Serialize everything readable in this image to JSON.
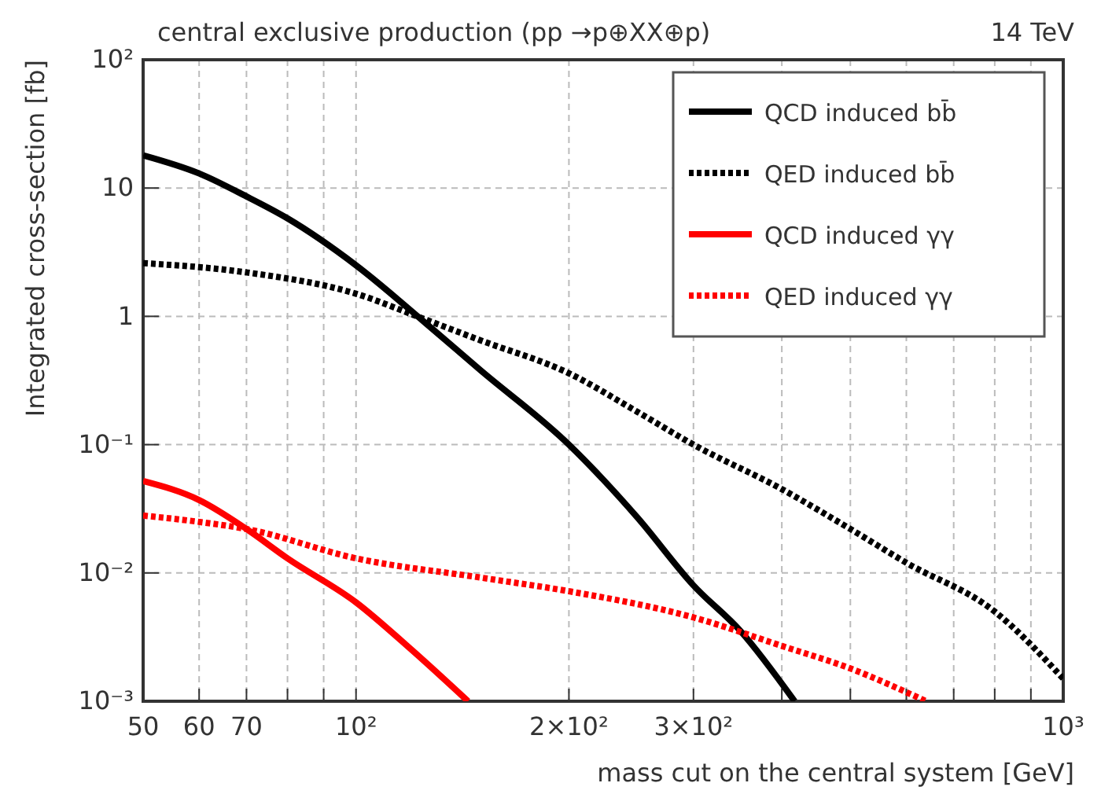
{
  "chart_data": {
    "type": "line",
    "title": "central exclusive production (pp →p⊕XX⊕p)",
    "annotations": [
      "14 TeV"
    ],
    "xlabel": "mass cut on the central system [GeV]",
    "ylabel": "Integrated cross-section [fb]",
    "log": "xy",
    "grid": true,
    "legend": "top right",
    "xlim": [
      50,
      1000
    ],
    "ylim": [
      0.001,
      100
    ],
    "xticks": [
      50,
      60,
      70,
      {
        "value": 80,
        "label": null
      },
      {
        "value": 90,
        "label": null
      },
      {
        "value": 100,
        "label": "10²"
      },
      {
        "value": 200,
        "label": "2×10²"
      },
      {
        "value": 300,
        "label": "3×10²"
      },
      {
        "value": 400,
        "label": null
      },
      {
        "value": 500,
        "label": null
      },
      {
        "value": 600,
        "label": null
      },
      {
        "value": 700,
        "label": null
      },
      {
        "value": 800,
        "label": null
      },
      {
        "value": 900,
        "label": null
      },
      {
        "value": 1000,
        "label": "10³"
      }
    ],
    "yticks": [
      {
        "value": 0.001,
        "label": "10⁻³"
      },
      {
        "value": 0.01,
        "label": "10⁻²"
      },
      {
        "value": 0.1,
        "label": "10⁻¹"
      },
      1,
      10,
      {
        "value": 100,
        "label": "10²"
      }
    ],
    "series": [
      {
        "name": "QCD induced bb̄",
        "color": "#000000",
        "line_style": "solid",
        "x": [
          50,
          60,
          70,
          80,
          100,
          125,
          150,
          200,
          250,
          300,
          350,
          417
        ],
        "values": [
          18,
          13,
          8.6,
          5.8,
          2.5,
          0.9,
          0.38,
          0.1,
          0.027,
          0.008,
          0.0035,
          0.001
        ]
      },
      {
        "name": "QED induced bb̄",
        "color": "#000000",
        "line_style": "dotted",
        "x": [
          50,
          70,
          100,
          125,
          150,
          200,
          250,
          300,
          400,
          500,
          600,
          800,
          1000
        ],
        "values": [
          2.6,
          2.2,
          1.5,
          0.95,
          0.65,
          0.36,
          0.18,
          0.1,
          0.045,
          0.022,
          0.012,
          0.005,
          0.0015
        ]
      },
      {
        "name": "QCD induced γγ",
        "color": "#ff0000",
        "line_style": "solid",
        "x": [
          50,
          60,
          70,
          80,
          100,
          120,
          144
        ],
        "values": [
          0.052,
          0.037,
          0.022,
          0.013,
          0.0059,
          0.0025,
          0.001
        ]
      },
      {
        "name": "QED induced γγ",
        "color": "#ff0000",
        "line_style": "dotted",
        "x": [
          50,
          60,
          70,
          100,
          150,
          200,
          300,
          400,
          500,
          640
        ],
        "values": [
          0.028,
          0.025,
          0.022,
          0.013,
          0.0092,
          0.0072,
          0.0045,
          0.0027,
          0.0018,
          0.001
        ]
      }
    ]
  }
}
